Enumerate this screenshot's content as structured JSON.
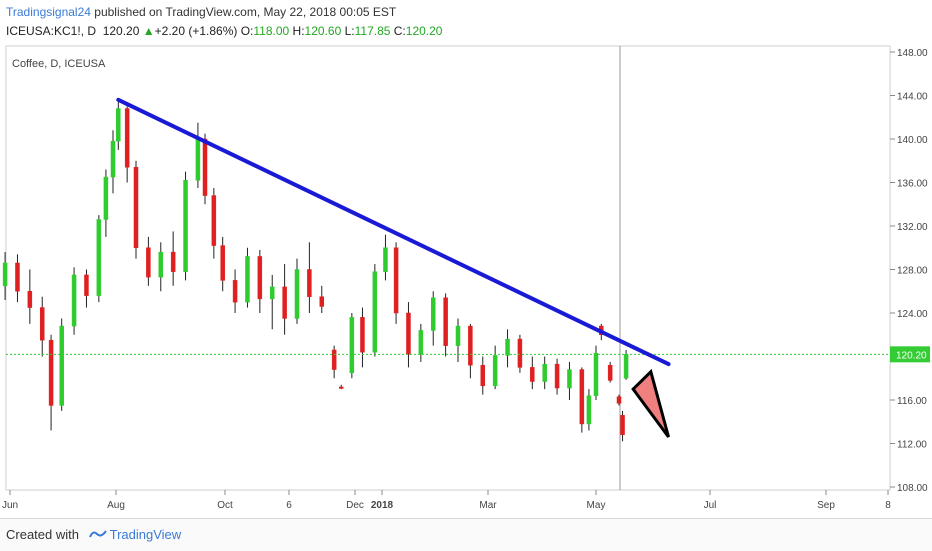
{
  "header": {
    "author": "Tradingsignal24",
    "published_text": " published on TradingView.com, May 22, 2018 00:05 EST",
    "symbol_line": "ICEUSA:KC1!, D",
    "last_price": "120.20",
    "change_arrow": "▲",
    "change": "+2.20 (+1.86%)",
    "o_label": "O:",
    "o_value": "118.00",
    "h_label": "H:",
    "h_value": "120.60",
    "l_label": "L:",
    "l_value": "117.85",
    "c_label": "C:",
    "c_value": "120.20"
  },
  "footer": {
    "created_with": "Created with",
    "brand": "TradingView"
  },
  "colors": {
    "up": "#2ecc2e",
    "down": "#e02020",
    "trendline": "#1a1ad6",
    "price_line": "#33cc33",
    "price_label_bg": "#33cc33",
    "triangle_fill": "#f08080",
    "triangle_stroke": "#000000"
  },
  "chart_data": {
    "type": "candlestick",
    "title": "Coffee, D, ICEUSA",
    "y_axis": {
      "min": 108,
      "max": 148,
      "ticks": [
        "148.00",
        "144.00",
        "140.00",
        "136.00",
        "132.00",
        "128.00",
        "124.00",
        "120.00",
        "116.00",
        "112.00",
        "108.00"
      ]
    },
    "x_axis": {
      "ticks": [
        "Jun",
        "Aug",
        "Oct",
        "6",
        "Dec",
        "2018",
        "Mar",
        "May",
        "Jul",
        "Sep",
        "8"
      ]
    },
    "current_price": 120.2,
    "current_price_label": "120.20",
    "trendline": {
      "from": {
        "date": "2017-08-04",
        "price": 143.6
      },
      "to": {
        "date": "2018-06-11",
        "price": 119.3
      }
    },
    "drawings": [
      {
        "type": "triangle",
        "description": "bearish arrow"
      }
    ],
    "candles": [
      {
        "d": "2017-06-01",
        "o": 126.5,
        "h": 129.6,
        "l": 125.2,
        "c": 128.6
      },
      {
        "d": "2017-06-08",
        "o": 128.6,
        "h": 129.4,
        "l": 125.0,
        "c": 126.0
      },
      {
        "d": "2017-06-15",
        "o": 126.0,
        "h": 128.0,
        "l": 123.0,
        "c": 124.5
      },
      {
        "d": "2017-06-22",
        "o": 124.5,
        "h": 125.5,
        "l": 120.0,
        "c": 121.5
      },
      {
        "d": "2017-06-27",
        "o": 121.5,
        "h": 122.0,
        "l": 113.2,
        "c": 115.5
      },
      {
        "d": "2017-07-03",
        "o": 115.5,
        "h": 123.5,
        "l": 115.0,
        "c": 122.8
      },
      {
        "d": "2017-07-10",
        "o": 122.8,
        "h": 128.2,
        "l": 122.0,
        "c": 127.5
      },
      {
        "d": "2017-07-17",
        "o": 127.5,
        "h": 128.0,
        "l": 124.5,
        "c": 125.6
      },
      {
        "d": "2017-07-24",
        "o": 125.6,
        "h": 133.0,
        "l": 125.0,
        "c": 132.6
      },
      {
        "d": "2017-07-28",
        "o": 132.6,
        "h": 137.2,
        "l": 131.0,
        "c": 136.5
      },
      {
        "d": "2017-08-01",
        "o": 136.5,
        "h": 140.8,
        "l": 135.0,
        "c": 139.8
      },
      {
        "d": "2017-08-04",
        "o": 139.8,
        "h": 143.6,
        "l": 139.0,
        "c": 142.8
      },
      {
        "d": "2017-08-09",
        "o": 142.8,
        "h": 143.0,
        "l": 136.0,
        "c": 137.4
      },
      {
        "d": "2017-08-14",
        "o": 137.4,
        "h": 138.0,
        "l": 129.0,
        "c": 130.0
      },
      {
        "d": "2017-08-21",
        "o": 130.0,
        "h": 131.0,
        "l": 126.5,
        "c": 127.3
      },
      {
        "d": "2017-08-28",
        "o": 127.3,
        "h": 130.5,
        "l": 126.0,
        "c": 129.6
      },
      {
        "d": "2017-09-04",
        "o": 129.6,
        "h": 131.5,
        "l": 126.5,
        "c": 127.8
      },
      {
        "d": "2017-09-11",
        "o": 127.8,
        "h": 137.0,
        "l": 127.0,
        "c": 136.2
      },
      {
        "d": "2017-09-18",
        "o": 136.2,
        "h": 141.5,
        "l": 135.5,
        "c": 140.0
      },
      {
        "d": "2017-09-22",
        "o": 140.0,
        "h": 140.5,
        "l": 134.0,
        "c": 134.8
      },
      {
        "d": "2017-09-27",
        "o": 134.8,
        "h": 135.5,
        "l": 129.0,
        "c": 130.2
      },
      {
        "d": "2017-10-02",
        "o": 130.2,
        "h": 131.0,
        "l": 126.0,
        "c": 127.0
      },
      {
        "d": "2017-10-09",
        "o": 127.0,
        "h": 128.0,
        "l": 124.0,
        "c": 125.0
      },
      {
        "d": "2017-10-16",
        "o": 125.0,
        "h": 130.0,
        "l": 124.5,
        "c": 129.2
      },
      {
        "d": "2017-10-23",
        "o": 129.2,
        "h": 129.8,
        "l": 124.0,
        "c": 125.3
      },
      {
        "d": "2017-10-30",
        "o": 125.3,
        "h": 127.5,
        "l": 122.5,
        "c": 126.4
      },
      {
        "d": "2017-11-06",
        "o": 126.4,
        "h": 128.5,
        "l": 122.0,
        "c": 123.5
      },
      {
        "d": "2017-11-13",
        "o": 123.5,
        "h": 129.0,
        "l": 123.0,
        "c": 128.0
      },
      {
        "d": "2017-11-20",
        "o": 128.0,
        "h": 130.5,
        "l": 124.0,
        "c": 125.5
      },
      {
        "d": "2017-11-27",
        "o": 125.5,
        "h": 126.5,
        "l": 124.0,
        "c": 124.6
      },
      {
        "d": "2017-12-04",
        "o": 120.6,
        "h": 121.0,
        "l": 118.0,
        "c": 118.8
      },
      {
        "d": "2017-12-08",
        "o": 117.2,
        "h": 117.4,
        "l": 117.0,
        "c": 117.1
      },
      {
        "d": "2017-12-14",
        "o": 118.5,
        "h": 124.0,
        "l": 118.0,
        "c": 123.6
      },
      {
        "d": "2017-12-20",
        "o": 123.6,
        "h": 124.5,
        "l": 119.0,
        "c": 120.4
      },
      {
        "d": "2017-12-27",
        "o": 120.4,
        "h": 128.5,
        "l": 120.0,
        "c": 127.8
      },
      {
        "d": "2018-01-02",
        "o": 127.8,
        "h": 131.2,
        "l": 127.0,
        "c": 130.0
      },
      {
        "d": "2018-01-08",
        "o": 130.0,
        "h": 130.5,
        "l": 123.0,
        "c": 124.0
      },
      {
        "d": "2018-01-15",
        "o": 124.0,
        "h": 125.0,
        "l": 119.0,
        "c": 120.2
      },
      {
        "d": "2018-01-22",
        "o": 120.2,
        "h": 123.0,
        "l": 119.5,
        "c": 122.4
      },
      {
        "d": "2018-01-29",
        "o": 122.4,
        "h": 126.0,
        "l": 121.0,
        "c": 125.4
      },
      {
        "d": "2018-02-05",
        "o": 125.4,
        "h": 125.8,
        "l": 120.0,
        "c": 121.0
      },
      {
        "d": "2018-02-12",
        "o": 121.0,
        "h": 123.5,
        "l": 119.5,
        "c": 122.8
      },
      {
        "d": "2018-02-19",
        "o": 122.8,
        "h": 123.0,
        "l": 118.0,
        "c": 119.2
      },
      {
        "d": "2018-02-26",
        "o": 119.2,
        "h": 120.0,
        "l": 116.5,
        "c": 117.3
      },
      {
        "d": "2018-03-05",
        "o": 117.3,
        "h": 121.0,
        "l": 117.0,
        "c": 120.1
      },
      {
        "d": "2018-03-12",
        "o": 120.1,
        "h": 122.5,
        "l": 119.0,
        "c": 121.6
      },
      {
        "d": "2018-03-19",
        "o": 121.6,
        "h": 122.0,
        "l": 118.5,
        "c": 119.0
      },
      {
        "d": "2018-03-26",
        "o": 119.0,
        "h": 120.0,
        "l": 117.0,
        "c": 117.7
      },
      {
        "d": "2018-04-02",
        "o": 117.7,
        "h": 120.0,
        "l": 117.0,
        "c": 119.3
      },
      {
        "d": "2018-04-09",
        "o": 119.3,
        "h": 119.8,
        "l": 116.5,
        "c": 117.1
      },
      {
        "d": "2018-04-16",
        "o": 117.1,
        "h": 119.5,
        "l": 116.0,
        "c": 118.8
      },
      {
        "d": "2018-04-23",
        "o": 118.8,
        "h": 119.0,
        "l": 113.0,
        "c": 113.8
      },
      {
        "d": "2018-04-27",
        "o": 113.8,
        "h": 117.0,
        "l": 113.2,
        "c": 116.4
      },
      {
        "d": "2018-05-01",
        "o": 116.4,
        "h": 121.0,
        "l": 116.0,
        "c": 120.3
      },
      {
        "d": "2018-05-04",
        "o": 122.8,
        "h": 123.0,
        "l": 121.5,
        "c": 122.0
      },
      {
        "d": "2018-05-09",
        "o": 119.2,
        "h": 119.5,
        "l": 117.6,
        "c": 117.8
      },
      {
        "d": "2018-05-14",
        "o": 116.3,
        "h": 116.5,
        "l": 115.5,
        "c": 115.7
      },
      {
        "d": "2018-05-16",
        "o": 114.6,
        "h": 115.0,
        "l": 112.2,
        "c": 112.8
      },
      {
        "d": "2018-05-18",
        "o": 118.0,
        "h": 120.6,
        "l": 117.85,
        "c": 120.2
      }
    ]
  }
}
